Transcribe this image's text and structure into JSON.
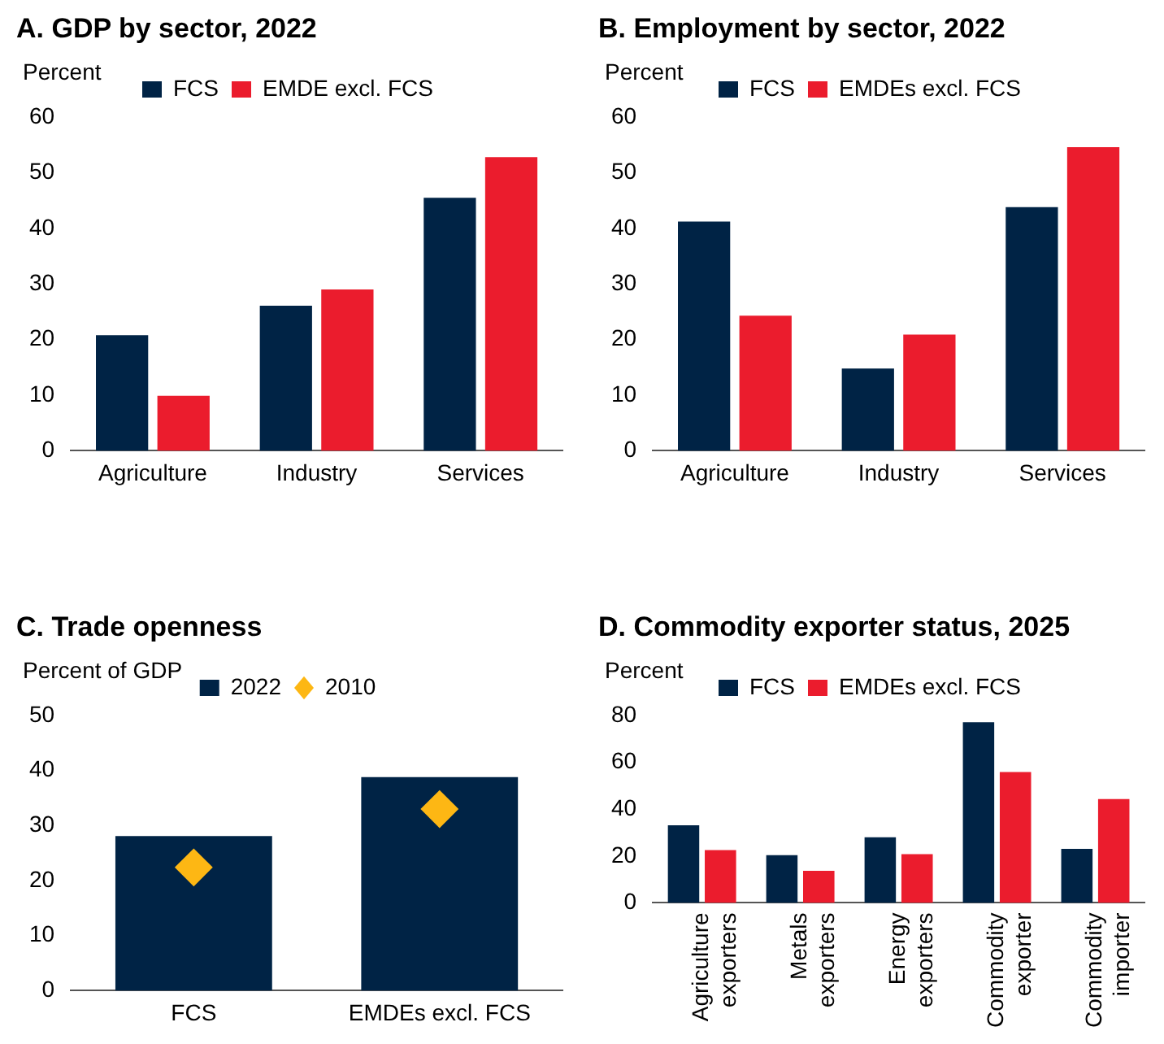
{
  "chart_data": [
    {
      "type": "bar",
      "title": "A. GDP by sector, 2022",
      "ylabel": "Percent",
      "categories": [
        "Agriculture",
        "Industry",
        "Services"
      ],
      "series": [
        {
          "name": "FCS",
          "color": "#002345",
          "values": [
            20.8,
            26.1,
            45.5
          ]
        },
        {
          "name": "EMDE excl. FCS",
          "color": "#eb1c2d",
          "values": [
            9.9,
            29.0,
            52.8
          ]
        }
      ],
      "ylim": [
        0,
        60
      ],
      "yticks": [
        0,
        10,
        20,
        30,
        40,
        50,
        60
      ],
      "grid": false,
      "legend": "top"
    },
    {
      "type": "bar",
      "title": "B. Employment by sector, 2022",
      "ylabel": "Percent",
      "categories": [
        "Agriculture",
        "Industry",
        "Services"
      ],
      "series": [
        {
          "name": "FCS",
          "color": "#002345",
          "values": [
            41.2,
            14.8,
            43.8
          ]
        },
        {
          "name": "EMDEs excl. FCS",
          "color": "#eb1c2d",
          "values": [
            24.3,
            20.9,
            54.6
          ]
        }
      ],
      "ylim": [
        0,
        60
      ],
      "yticks": [
        0,
        10,
        20,
        30,
        40,
        50,
        60
      ],
      "grid": false,
      "legend": "top"
    },
    {
      "type": "bar",
      "title": "C. Trade openness",
      "ylabel": "Percent of GDP",
      "categories": [
        "FCS",
        "EMDEs excl. FCS"
      ],
      "series": [
        {
          "name": "2022",
          "color": "#002345",
          "values": [
            28.1,
            38.8
          ]
        },
        {
          "name": "2010",
          "type": "scatter",
          "x": [
            "FCS",
            "EMDEs excl. FCS"
          ],
          "color": "#fdb714",
          "marker": "diamond",
          "values": [
            22.4,
            33.0
          ]
        }
      ],
      "ylim": [
        0,
        50
      ],
      "yticks": [
        0,
        10,
        20,
        30,
        40,
        50
      ],
      "grid": false,
      "legend": "top"
    },
    {
      "type": "bar",
      "title": "D. Commodity exporter status, 2025",
      "ylabel": "Percent",
      "categories": [
        "Agriculture exporters",
        "Metals exporters",
        "Energy exporters",
        "Commodity exporter",
        "Commodity importer"
      ],
      "series": [
        {
          "name": "FCS",
          "color": "#002345",
          "values": [
            33.1,
            20.4,
            28.0,
            77.1,
            23.1
          ]
        },
        {
          "name": "EMDEs excl. FCS",
          "color": "#eb1c2d",
          "values": [
            22.5,
            13.7,
            20.8,
            55.9,
            44.3
          ]
        }
      ],
      "ylim": [
        0,
        80
      ],
      "yticks": [
        0,
        20,
        40,
        60,
        80
      ],
      "grid": false,
      "legend": "top"
    }
  ]
}
